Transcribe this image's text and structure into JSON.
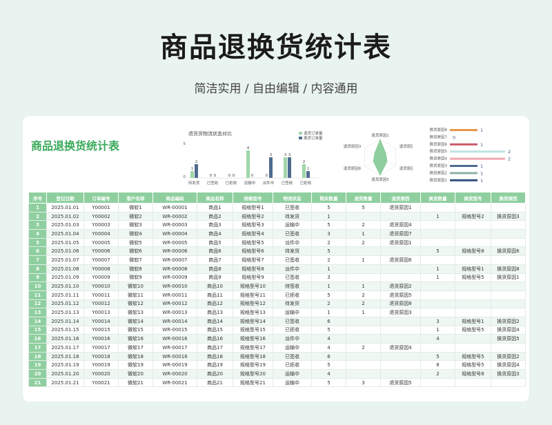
{
  "page": {
    "title": "商品退换货统计表",
    "subtitle": "简洁实用 / 自由编辑 / 内容通用"
  },
  "sheet": {
    "title": "商品退换货统计表"
  },
  "colors": {
    "accent": "#3aa95a",
    "header": "#8fcf9f",
    "bar_green": "#9fd6a9",
    "bar_blue": "#4f6b8f"
  },
  "chart_data": [
    {
      "type": "bar",
      "title": "退货货物流状态对比",
      "categories": [
        "待发货",
        "已签收",
        "已拒收",
        "运输中",
        "派件中",
        "已签收",
        "已拒收"
      ],
      "series": [
        {
          "name": "退货订单量",
          "values": [
            1,
            0,
            0,
            4,
            0,
            3,
            2
          ]
        },
        {
          "name": "换货订单量",
          "values": [
            2,
            0,
            0,
            0,
            3,
            3,
            1
          ]
        }
      ],
      "ylim": [
        0,
        5
      ],
      "legend": "top-right"
    },
    {
      "type": "radar",
      "categories": [
        "退货原因1",
        "退货原因2",
        "退货原因4",
        "退货原因5",
        "退货原因6",
        "退货原因3"
      ]
    },
    {
      "type": "bar",
      "orientation": "horizontal",
      "categories": [
        "换货原因8",
        "换货原因7",
        "换货原因6",
        "换货原因5",
        "换货原因4",
        "换货原因3",
        "换货原因2",
        "换货原因1"
      ],
      "values": [
        1,
        0,
        1,
        2,
        2,
        1,
        1,
        1
      ],
      "colors": [
        "#e8944a",
        "#3d5a80",
        "#c85a6a",
        "#bfe3e0",
        "#f2a7b0",
        "#4f6b8f",
        "#8fb0a8",
        "#2f4f7f"
      ]
    }
  ],
  "table": {
    "headers": [
      "序号",
      "登记日期",
      "订单编号",
      "客户名称",
      "商品编码",
      "商品名称",
      "规格型号",
      "物流状态",
      "购买数量",
      "退货数量",
      "退货原因",
      "换货数量",
      "换货型号",
      "换货原因"
    ],
    "rows": [
      [
        "1",
        "2025.01.01",
        "Y00001",
        "微软1",
        "WR-00001",
        "商品1",
        "规格型号1",
        "已签收",
        "5",
        "5",
        "退货原因1",
        "",
        "",
        ""
      ],
      [
        "2",
        "2025.01.02",
        "Y00002",
        "微软2",
        "WR-00002",
        "商品2",
        "规格型号2",
        "待发货",
        "1",
        "",
        "",
        "1",
        "规格型号2",
        "换货原因3"
      ],
      [
        "3",
        "2025.01.03",
        "Y00003",
        "微软3",
        "WR-00003",
        "商品3",
        "规格型号3",
        "运输中",
        "5",
        "2",
        "退货原因4",
        "",
        "",
        ""
      ],
      [
        "4",
        "2025.01.04",
        "Y00004",
        "微软4",
        "WR-00004",
        "商品4",
        "规格型号4",
        "已签收",
        "3",
        "1",
        "退货原因7",
        "",
        "",
        ""
      ],
      [
        "5",
        "2025.01.05",
        "Y00005",
        "微软5",
        "WR-00005",
        "商品5",
        "规格型号5",
        "派件中",
        "2",
        "2",
        "退货原因1",
        "",
        "",
        ""
      ],
      [
        "6",
        "2025.01.06",
        "Y00006",
        "微软6",
        "WR-00006",
        "商品6",
        "规格型号6",
        "待发货",
        "5",
        "",
        "",
        "5",
        "规格型号8",
        "换货原因6"
      ],
      [
        "7",
        "2025.01.07",
        "Y00007",
        "微软7",
        "WR-00007",
        "商品7",
        "规格型号7",
        "已签收",
        "2",
        "1",
        "退货原因6",
        "",
        "",
        ""
      ],
      [
        "8",
        "2025.01.08",
        "Y00008",
        "微软8",
        "WR-00008",
        "商品8",
        "规格型号8",
        "派件中",
        "1",
        "",
        "",
        "1",
        "规格型号1",
        "换货原因8"
      ],
      [
        "9",
        "2025.01.09",
        "Y00009",
        "微软9",
        "WR-00009",
        "商品9",
        "规格型号9",
        "已签收",
        "3",
        "",
        "",
        "1",
        "规格型号5",
        "换货原因1"
      ],
      [
        "10",
        "2025.01.10",
        "Y00010",
        "微软10",
        "WR-00010",
        "商品10",
        "规格型号10",
        "待签收",
        "1",
        "1",
        "退货原因2",
        "",
        "",
        ""
      ],
      [
        "11",
        "2025.01.11",
        "Y00011",
        "微软11",
        "WR-00011",
        "商品11",
        "规格型号11",
        "已拒收",
        "5",
        "2",
        "退货原因5",
        "",
        "",
        ""
      ],
      [
        "12",
        "2025.01.12",
        "Y00012",
        "微软12",
        "WR-00012",
        "商品12",
        "规格型号12",
        "待发货",
        "2",
        "2",
        "退货原因8",
        "",
        "",
        ""
      ],
      [
        "13",
        "2025.01.13",
        "Y00013",
        "微软13",
        "WR-00013",
        "商品13",
        "规格型号13",
        "运输中",
        "1",
        "1",
        "退货原因3",
        "",
        "",
        ""
      ],
      [
        "14",
        "2025.01.14",
        "Y00014",
        "微软14",
        "WR-00014",
        "商品14",
        "规格型号14",
        "已签收",
        "6",
        "",
        "",
        "3",
        "规格型号1",
        "换货原因2"
      ],
      [
        "15",
        "2025.01.15",
        "Y00015",
        "微软15",
        "WR-00015",
        "商品15",
        "规格型号15",
        "已拒收",
        "5",
        "",
        "",
        "1",
        "规格型号5",
        "换货原因4"
      ],
      [
        "16",
        "2025.01.16",
        "Y00016",
        "微软16",
        "WR-00016",
        "商品16",
        "规格型号16",
        "派件中",
        "4",
        "",
        "",
        "4",
        "",
        "换货原因5"
      ],
      [
        "17",
        "2025.01.17",
        "Y00017",
        "微软17",
        "WR-00017",
        "商品17",
        "规格型号17",
        "运输中",
        "4",
        "2",
        "退货原因4",
        "",
        "",
        ""
      ],
      [
        "18",
        "2025.01.18",
        "Y00018",
        "微软18",
        "WR-00018",
        "商品18",
        "规格型号18",
        "已签收",
        "6",
        "",
        "",
        "5",
        "规格型号5",
        "换货原因2"
      ],
      [
        "19",
        "2025.01.19",
        "Y00019",
        "微软19",
        "WR-00019",
        "商品19",
        "规格型号19",
        "已拒收",
        "5",
        "",
        "",
        "8",
        "规格型号5",
        "换货原因4"
      ],
      [
        "20",
        "2025.01.20",
        "Y00020",
        "微软20",
        "WR-00020",
        "商品20",
        "规格型号20",
        "运输中",
        "4",
        "",
        "",
        "2",
        "规格型号8",
        "换货原因3"
      ],
      [
        "21",
        "2025.01.21",
        "Y00021",
        "微软21",
        "WR-00021",
        "商品21",
        "规格型号21",
        "运输中",
        "5",
        "3",
        "退货原因5",
        "",
        "",
        ""
      ]
    ]
  }
}
